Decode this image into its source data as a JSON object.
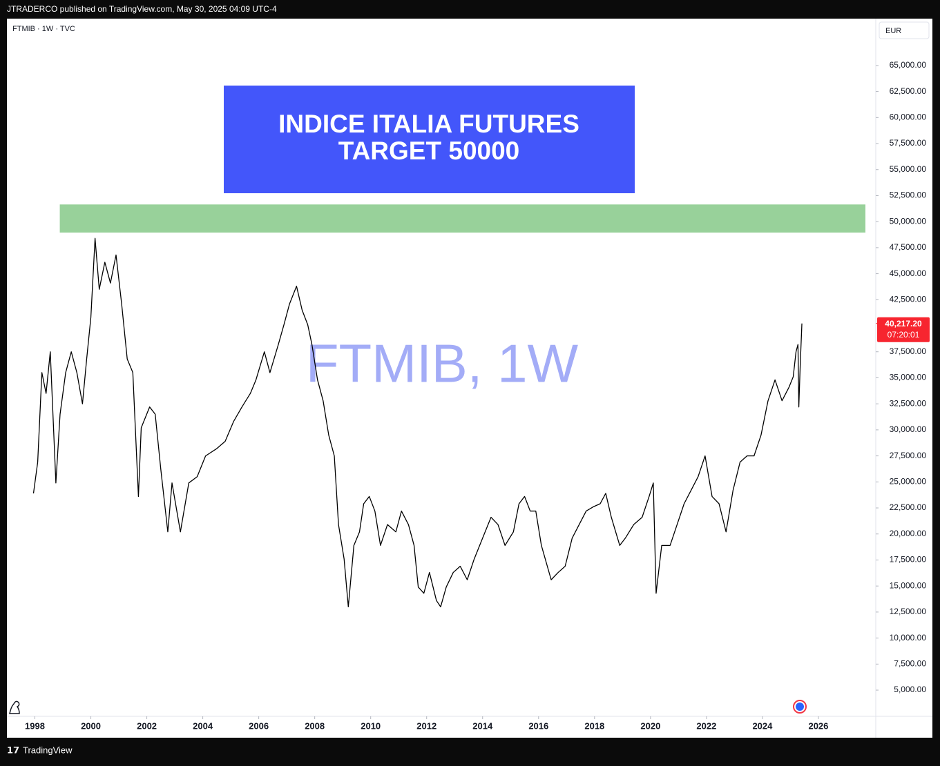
{
  "publisher": "JTRADERCO published on TradingView.com, May 30, 2025 04:09 UTC-4",
  "footer": "TradingView",
  "chart_data": {
    "type": "line",
    "symbol_header": "FTMIB · 1W · TVC",
    "currency": "EUR",
    "watermark": "FTMIB, 1W",
    "banner": [
      "INDICE ITALIA FUTURES",
      "TARGET 50000"
    ],
    "line_color": "#000000",
    "zone": {
      "color": "#98d19a",
      "ymin": 48950,
      "ymax": 51650,
      "xmin": 1998.89,
      "xmax": 2027.68
    },
    "last_price": {
      "value": 40217.2,
      "label": "40,217.20"
    },
    "countdown": "07:20:01",
    "last_price_color": "#f7252f",
    "xlim": [
      1997,
      2028.05
    ],
    "ylim": [
      2550,
      69500
    ],
    "xticks": [
      1998,
      2000,
      2002,
      2004,
      2006,
      2008,
      2010,
      2012,
      2014,
      2016,
      2018,
      2020,
      2022,
      2024,
      2026
    ],
    "yticks": [
      {
        "value": 5000,
        "label": "5,000.00"
      },
      {
        "value": 7500,
        "label": "7,500.00"
      },
      {
        "value": 10000,
        "label": "10,000.00"
      },
      {
        "value": 12500,
        "label": "12,500.00"
      },
      {
        "value": 15000,
        "label": "15,000.00"
      },
      {
        "value": 17500,
        "label": "17,500.00"
      },
      {
        "value": 20000,
        "label": "20,000.00"
      },
      {
        "value": 22500,
        "label": "22,500.00"
      },
      {
        "value": 25000,
        "label": "25,000.00"
      },
      {
        "value": 27500,
        "label": "27,500.00"
      },
      {
        "value": 30000,
        "label": "30,000.00"
      },
      {
        "value": 32500,
        "label": "32,500.00"
      },
      {
        "value": 35000,
        "label": "35,000.00"
      },
      {
        "value": 37500,
        "label": "37,500.00"
      },
      {
        "value": 42500,
        "label": "42,500.00"
      },
      {
        "value": 45000,
        "label": "45,000.00"
      },
      {
        "value": 47500,
        "label": "47,500.00"
      },
      {
        "value": 50000,
        "label": "50,000.00"
      },
      {
        "value": 52500,
        "label": "52,500.00"
      },
      {
        "value": 55000,
        "label": "55,000.00"
      },
      {
        "value": 57500,
        "label": "57,500.00"
      },
      {
        "value": 60000,
        "label": "60,000.00"
      },
      {
        "value": 62500,
        "label": "62,500.00"
      },
      {
        "value": 65000,
        "label": "65,000.00"
      }
    ],
    "x": [
      1997.95,
      1998.1,
      1998.25,
      1998.4,
      1998.55,
      1998.75,
      1998.9,
      1999.1,
      1999.3,
      1999.5,
      1999.7,
      1999.85,
      2000.0,
      2000.15,
      2000.3,
      2000.5,
      2000.7,
      2000.9,
      2001.1,
      2001.3,
      2001.5,
      2001.7,
      2001.8,
      2002.1,
      2002.3,
      2002.5,
      2002.75,
      2002.9,
      2003.2,
      2003.5,
      2003.8,
      2004.1,
      2004.5,
      2004.8,
      2005.1,
      2005.4,
      2005.7,
      2005.9,
      2006.2,
      2006.4,
      2006.7,
      2006.9,
      2007.1,
      2007.35,
      2007.55,
      2007.75,
      2007.9,
      2008.1,
      2008.3,
      2008.5,
      2008.7,
      2008.85,
      2009.05,
      2009.2,
      2009.4,
      2009.6,
      2009.75,
      2009.95,
      2010.15,
      2010.35,
      2010.6,
      2010.9,
      2011.1,
      2011.35,
      2011.55,
      2011.7,
      2011.9,
      2012.1,
      2012.35,
      2012.5,
      2012.7,
      2012.95,
      2013.2,
      2013.45,
      2013.7,
      2014.0,
      2014.3,
      2014.55,
      2014.8,
      2015.1,
      2015.3,
      2015.5,
      2015.7,
      2015.9,
      2016.1,
      2016.45,
      2016.7,
      2016.95,
      2017.2,
      2017.45,
      2017.7,
      2017.95,
      2018.2,
      2018.4,
      2018.6,
      2018.9,
      2019.1,
      2019.4,
      2019.7,
      2019.95,
      2020.1,
      2020.2,
      2020.4,
      2020.7,
      2020.95,
      2021.2,
      2021.45,
      2021.7,
      2021.95,
      2022.2,
      2022.45,
      2022.7,
      2022.95,
      2023.2,
      2023.45,
      2023.7,
      2023.95,
      2024.2,
      2024.45,
      2024.7,
      2024.95,
      2025.1,
      2025.2,
      2025.27,
      2025.3,
      2025.35,
      2025.41
    ],
    "values": [
      23900,
      26900,
      35500,
      33500,
      37500,
      24900,
      31500,
      35500,
      37500,
      35500,
      32500,
      36800,
      40800,
      48400,
      43500,
      46100,
      44100,
      46800,
      42100,
      36800,
      35500,
      23600,
      30200,
      32200,
      31500,
      26200,
      20200,
      24900,
      20200,
      24900,
      25500,
      27500,
      28200,
      28900,
      30800,
      32200,
      33500,
      34800,
      37500,
      35500,
      38200,
      40100,
      42100,
      43800,
      41500,
      40100,
      38200,
      34800,
      32800,
      29500,
      27500,
      20900,
      17600,
      13000,
      18900,
      20200,
      22900,
      23600,
      22200,
      18900,
      20900,
      20200,
      22200,
      20900,
      18900,
      14900,
      14300,
      16300,
      13600,
      13000,
      14900,
      16300,
      16900,
      15600,
      17600,
      19600,
      21600,
      20900,
      18900,
      20200,
      22900,
      23600,
      22200,
      22200,
      18900,
      15600,
      16300,
      16900,
      19600,
      20900,
      22200,
      22600,
      22900,
      23900,
      21600,
      18900,
      19600,
      20900,
      21600,
      23600,
      24900,
      14300,
      18900,
      18900,
      20900,
      22900,
      24200,
      25500,
      27500,
      23600,
      22900,
      20200,
      24200,
      26900,
      27500,
      27500,
      29500,
      32800,
      34800,
      32800,
      34100,
      35100,
      37500,
      38200,
      32200,
      36200,
      40217.2
    ]
  }
}
